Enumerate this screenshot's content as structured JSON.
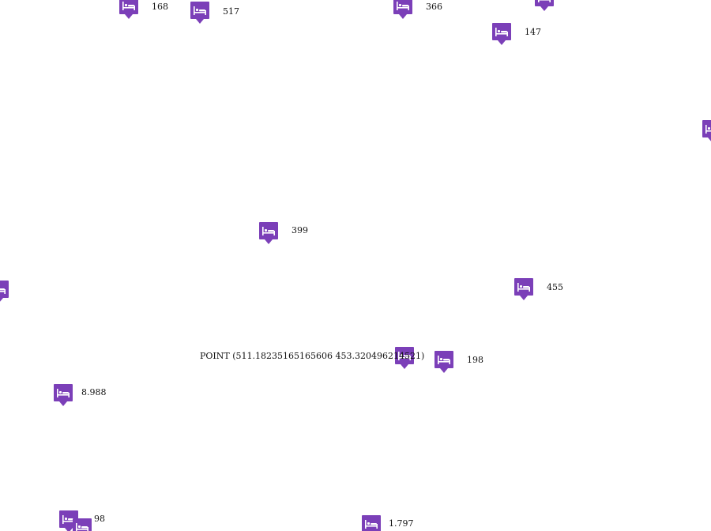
{
  "map": {
    "marker_color": "#7b3fb8",
    "marker_icon": "hotel-bed-icon",
    "point_wkt": "POINT (511.18235165165606 453.320496214521)",
    "markers": [
      {
        "label": "168"
      },
      {
        "label": "517"
      },
      {
        "label": "366"
      },
      {
        "label": "147"
      },
      {
        "label": ""
      },
      {
        "label": ""
      },
      {
        "label": "399"
      },
      {
        "label": ""
      },
      {
        "label": "455"
      },
      {
        "label": ""
      },
      {
        "label": "198"
      },
      {
        "label": "8.988"
      },
      {
        "label": "98"
      },
      {
        "label": ""
      },
      {
        "label": "1.797"
      }
    ]
  }
}
